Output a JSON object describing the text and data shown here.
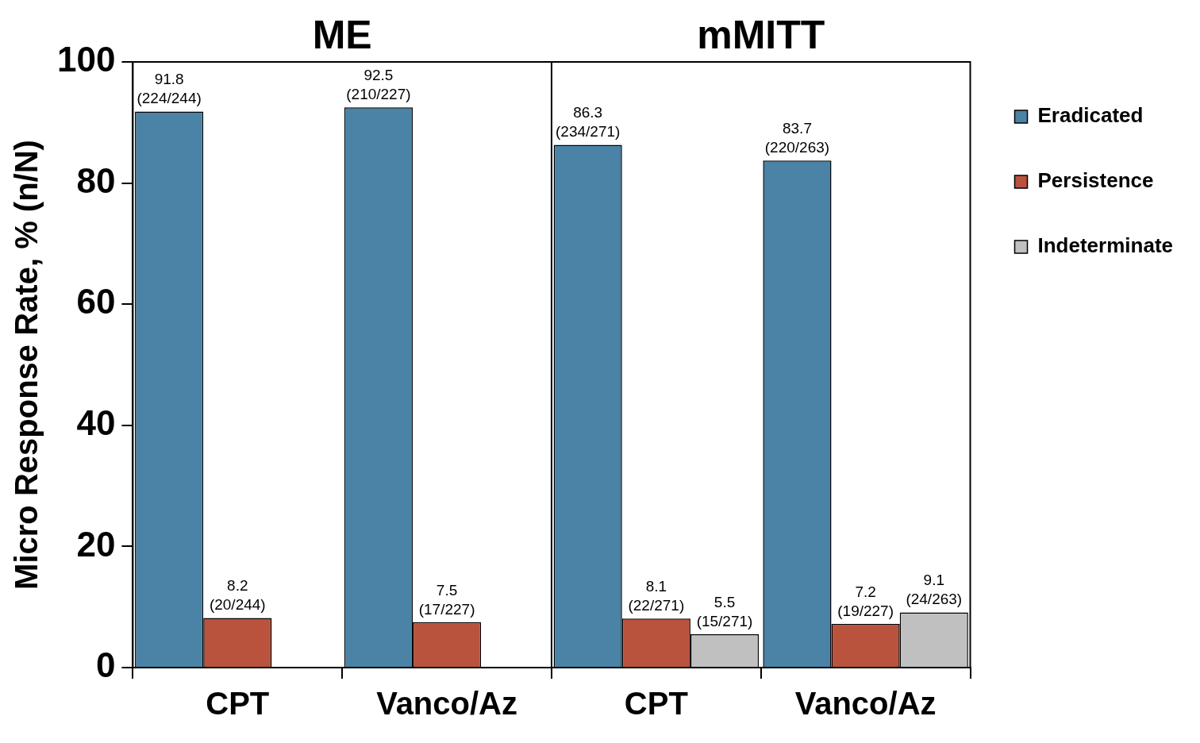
{
  "chart_data": {
    "type": "bar",
    "ylabel": "Micro Response Rate, % (n/N)",
    "categories": [
      "CPT",
      "Vanco/Az",
      "CPT",
      "Vanco/Az"
    ],
    "annotations": [
      "ME",
      "mMITT"
    ],
    "series": [
      {
        "name": "Eradicated",
        "color": "#4a83a6",
        "values": [
          91.8,
          92.5,
          86.3,
          83.7
        ],
        "value_labels": [
          "91.8\n(224/244)",
          "92.5\n(210/227)",
          "86.3\n(234/271)",
          "83.7\n(220/263)"
        ]
      },
      {
        "name": "Persistence",
        "color": "#b9533e",
        "values": [
          8.2,
          7.5,
          8.1,
          7.2
        ],
        "value_labels": [
          "8.2\n(20/244)",
          "7.5\n(17/227)",
          "8.1\n(22/271)",
          "7.2\n(19/227)"
        ]
      },
      {
        "name": "Indeterminate",
        "color": "#c0c0c0",
        "values": [
          null,
          null,
          5.5,
          9.1
        ],
        "value_labels": [
          null,
          null,
          "5.5\n(15/271)",
          "9.1\n(24/263)"
        ]
      }
    ],
    "ylim": [
      0,
      100
    ],
    "yticks": [
      0,
      20,
      40,
      60,
      80,
      100
    ],
    "grid": false,
    "legend": "right"
  }
}
